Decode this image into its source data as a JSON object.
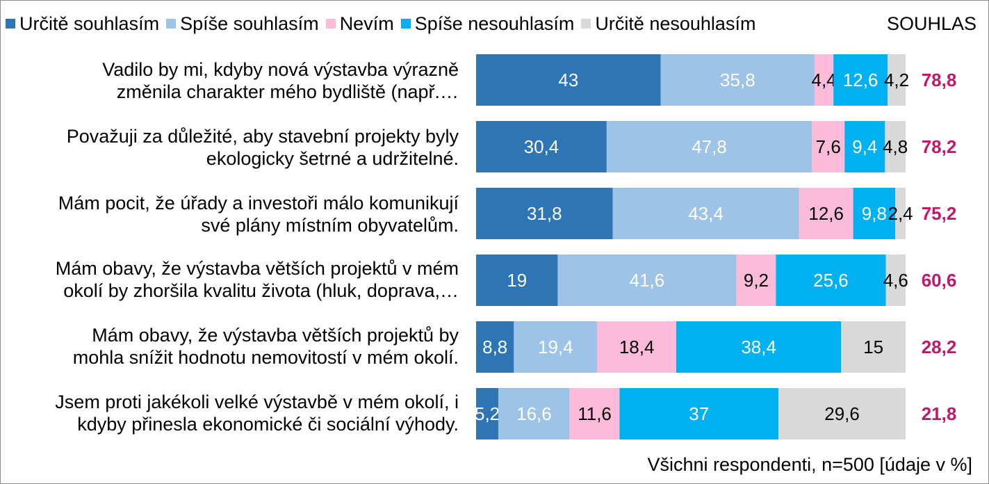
{
  "chart_data": {
    "type": "bar",
    "orientation": "horizontal",
    "stacked": true,
    "xlim": [
      0,
      100
    ],
    "legend_position": "top",
    "extra_column_title": "SOUHLAS",
    "footnote": "Všichni respondenti, n=500 [údaje v %]",
    "categories": [
      [
        "Vadilo by mi, kdyby nová výstavba výrazně",
        "změnila charakter mého bydliště (např.…"
      ],
      [
        "Považuji za důležité, aby stavební projekty byly",
        "ekologicky šetrné a udržitelné."
      ],
      [
        "Mám pocit, že úřady a investoři málo komunikují",
        "své plány místním obyvatelům."
      ],
      [
        "Mám obavy, že výstavba větších projektů v mém",
        "okolí by zhoršila kvalitu života (hluk, doprava,…"
      ],
      [
        "Mám obavy, že výstavba větších projektů by",
        "mohla snížit hodnotu nemovitostí v mém okolí."
      ],
      [
        "Jsem proti jakékoli velké výstavbě v mém okolí, i",
        "kdyby přinesla ekonomické či sociální výhody."
      ]
    ],
    "series": [
      {
        "name": "Určitě souhlasím",
        "color": "#2e75b6",
        "label_color": "#ffffff",
        "values": [
          43,
          30.4,
          31.8,
          19,
          8.8,
          5.2
        ],
        "labels": [
          "43",
          "30,4",
          "31,8",
          "19",
          "8,8",
          "5,2"
        ]
      },
      {
        "name": "Spíše souhlasím",
        "color": "#9dc3e6",
        "label_color": "#ffffff",
        "values": [
          35.8,
          47.8,
          43.4,
          41.6,
          19.4,
          16.6
        ],
        "labels": [
          "35,8",
          "47,8",
          "43,4",
          "41,6",
          "19,4",
          "16,6"
        ]
      },
      {
        "name": "Nevím",
        "color": "#fbbbd9",
        "label_color": "#000000",
        "values": [
          4.4,
          7.6,
          12.6,
          9.2,
          18.4,
          11.6
        ],
        "labels": [
          "4,4",
          "7,6",
          "12,6",
          "9,2",
          "18,4",
          "11,6"
        ]
      },
      {
        "name": "Spíše nesouhlasím",
        "color": "#00b0f0",
        "label_color": "#ffffff",
        "values": [
          12.6,
          9.4,
          9.8,
          25.6,
          38.4,
          37
        ],
        "labels": [
          "12,6",
          "9,4",
          "9,8",
          "25,6",
          "38,4",
          "37"
        ]
      },
      {
        "name": "Určitě nesouhlasím",
        "color": "#d9d9d9",
        "label_color": "#000000",
        "values": [
          4.2,
          4.8,
          2.4,
          4.6,
          15,
          29.6
        ],
        "labels": [
          "4,2",
          "4,8",
          "2,4",
          "4,6",
          "15",
          "29,6"
        ]
      }
    ],
    "souhlas": [
      78.8,
      78.2,
      75.2,
      60.6,
      28.2,
      21.8
    ],
    "souhlas_labels": [
      "78,8",
      "78,2",
      "75,2",
      "60,6",
      "28,2",
      "21,8"
    ],
    "souhlas_color": "#c0186a"
  }
}
